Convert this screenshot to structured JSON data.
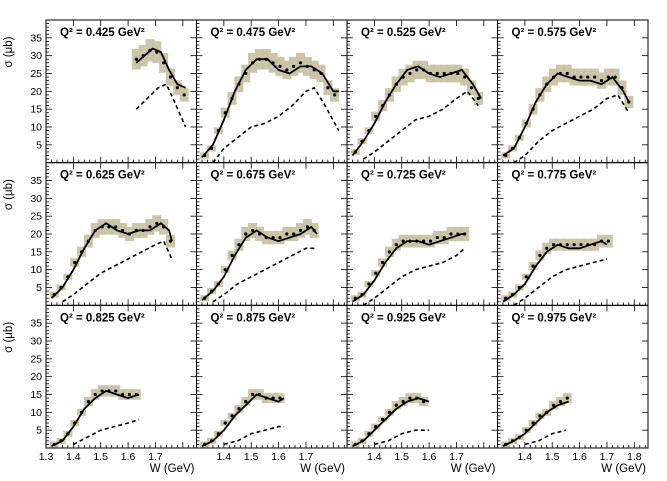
{
  "chart_data": {
    "type": "scatter",
    "title": "",
    "xlabel": "W (GeV)",
    "ylabel": "σ (μb)",
    "xlim": [
      1.3,
      1.85
    ],
    "ylim": [
      0,
      40
    ],
    "xticks": [
      1.3,
      1.4,
      1.5,
      1.6,
      1.7,
      1.8
    ],
    "xtick_labels": [
      "1.3",
      "1.4",
      "1.5",
      "1.6",
      "1.7",
      "1.8"
    ],
    "yticks": [
      5,
      10,
      15,
      20,
      25,
      30,
      35
    ],
    "ytick_labels": [
      "5",
      "10",
      "15",
      "20",
      "25",
      "30",
      "35"
    ],
    "legend": "none",
    "panels": [
      {
        "label": "Q² = 0.425 GeV²",
        "q2": "0.425",
        "points": {
          "x": [
            1.63,
            1.655,
            1.68,
            1.705,
            1.73,
            1.755,
            1.78,
            1.805
          ],
          "y": [
            29,
            30,
            31.5,
            31,
            28,
            24,
            21,
            19
          ]
        },
        "fit": {
          "x": [
            1.63,
            1.66,
            1.69,
            1.72,
            1.75,
            1.78,
            1.81
          ],
          "y": [
            28,
            30,
            32,
            31,
            26,
            22,
            21
          ]
        },
        "background": {
          "x": [
            1.63,
            1.67,
            1.71,
            1.74,
            1.77,
            1.81
          ],
          "y": [
            15,
            18,
            21,
            22,
            17,
            10
          ]
        }
      },
      {
        "label": "Q² = 0.475 GeV²",
        "q2": "0.475",
        "points": {
          "x": [
            1.33,
            1.355,
            1.38,
            1.405,
            1.43,
            1.455,
            1.48,
            1.505,
            1.53,
            1.555,
            1.58,
            1.605,
            1.63,
            1.655,
            1.68,
            1.705,
            1.73,
            1.755,
            1.78,
            1.805
          ],
          "y": [
            2,
            4,
            9,
            14,
            18,
            22,
            25,
            28,
            29,
            29,
            28,
            27,
            26,
            27,
            28,
            27,
            26,
            25,
            21,
            19
          ]
        },
        "fit": {
          "x": [
            1.32,
            1.36,
            1.4,
            1.44,
            1.48,
            1.52,
            1.56,
            1.6,
            1.64,
            1.68,
            1.72,
            1.76,
            1.8,
            1.82
          ],
          "y": [
            1.5,
            5,
            12,
            20,
            26,
            29,
            29,
            26,
            25,
            27,
            27,
            25,
            20,
            20
          ]
        },
        "background": {
          "x": [
            1.36,
            1.4,
            1.45,
            1.5,
            1.55,
            1.6,
            1.65,
            1.7,
            1.73,
            1.77,
            1.82
          ],
          "y": [
            0,
            4,
            7,
            10,
            11,
            13,
            16,
            20,
            21,
            16,
            9
          ]
        }
      },
      {
        "label": "Q² = 0.525 GeV²",
        "q2": "0.525",
        "points": {
          "x": [
            1.33,
            1.355,
            1.38,
            1.405,
            1.43,
            1.455,
            1.48,
            1.505,
            1.53,
            1.555,
            1.58,
            1.605,
            1.63,
            1.655,
            1.68,
            1.705,
            1.73,
            1.755,
            1.78
          ],
          "y": [
            3,
            6,
            9,
            13,
            16,
            19,
            22,
            24,
            25,
            26,
            26,
            25,
            25,
            25,
            25,
            25,
            24,
            21,
            18
          ]
        },
        "fit": {
          "x": [
            1.32,
            1.36,
            1.4,
            1.44,
            1.48,
            1.52,
            1.56,
            1.6,
            1.64,
            1.68,
            1.72,
            1.76,
            1.79
          ],
          "y": [
            2,
            6,
            11,
            17,
            22,
            26,
            27,
            25,
            24,
            25,
            26,
            22,
            18
          ]
        },
        "background": {
          "x": [
            1.36,
            1.4,
            1.45,
            1.5,
            1.55,
            1.6,
            1.65,
            1.7,
            1.74,
            1.78
          ],
          "y": [
            1,
            3,
            6,
            9,
            12,
            13,
            15,
            18,
            20,
            16
          ]
        }
      },
      {
        "label": "Q² = 0.575 GeV²",
        "q2": "0.575",
        "points": {
          "x": [
            1.33,
            1.355,
            1.38,
            1.405,
            1.43,
            1.455,
            1.48,
            1.505,
            1.53,
            1.555,
            1.58,
            1.605,
            1.63,
            1.655,
            1.68,
            1.705,
            1.73,
            1.755,
            1.78
          ],
          "y": [
            2,
            4,
            7,
            11,
            15,
            19,
            22,
            24,
            25,
            25,
            24,
            24,
            24,
            24,
            23,
            24,
            24,
            21,
            17
          ]
        },
        "fit": {
          "x": [
            1.32,
            1.36,
            1.4,
            1.44,
            1.48,
            1.52,
            1.56,
            1.6,
            1.64,
            1.68,
            1.72,
            1.76,
            1.78
          ],
          "y": [
            2,
            4,
            10,
            17,
            22,
            25,
            24,
            23,
            23,
            22,
            24,
            20,
            17
          ]
        },
        "background": {
          "x": [
            1.36,
            1.4,
            1.45,
            1.5,
            1.55,
            1.6,
            1.65,
            1.7,
            1.74,
            1.78
          ],
          "y": [
            0,
            2,
            6,
            9,
            11,
            13,
            15,
            18,
            19,
            14
          ]
        }
      },
      {
        "label": "Q² = 0.625 GeV²",
        "q2": "0.625",
        "points": {
          "x": [
            1.33,
            1.355,
            1.38,
            1.405,
            1.43,
            1.455,
            1.48,
            1.505,
            1.53,
            1.555,
            1.58,
            1.605,
            1.63,
            1.655,
            1.68,
            1.705,
            1.73,
            1.755
          ],
          "y": [
            3,
            5,
            8,
            12,
            15,
            18,
            21,
            22,
            22,
            22,
            21,
            20,
            21,
            21,
            22,
            23,
            22,
            18
          ]
        },
        "fit": {
          "x": [
            1.32,
            1.36,
            1.4,
            1.44,
            1.48,
            1.52,
            1.56,
            1.6,
            1.64,
            1.68,
            1.72,
            1.75,
            1.76
          ],
          "y": [
            2,
            5,
            10,
            16,
            21,
            23,
            21,
            20,
            21,
            21,
            23,
            21,
            18
          ]
        },
        "background": {
          "x": [
            1.36,
            1.4,
            1.45,
            1.5,
            1.55,
            1.6,
            1.65,
            1.7,
            1.73,
            1.76
          ],
          "y": [
            1,
            3,
            6,
            9,
            11,
            13,
            15,
            17,
            18,
            13
          ]
        }
      },
      {
        "label": "Q² = 0.675 GeV²",
        "q2": "0.675",
        "points": {
          "x": [
            1.33,
            1.355,
            1.38,
            1.405,
            1.43,
            1.455,
            1.48,
            1.505,
            1.53,
            1.555,
            1.58,
            1.605,
            1.63,
            1.655,
            1.68,
            1.705,
            1.73
          ],
          "y": [
            2,
            4,
            6,
            10,
            14,
            17,
            20,
            21,
            20,
            19,
            19,
            19,
            20,
            20,
            21,
            22,
            21
          ]
        },
        "fit": {
          "x": [
            1.32,
            1.36,
            1.4,
            1.44,
            1.48,
            1.52,
            1.56,
            1.6,
            1.64,
            1.68,
            1.72,
            1.74
          ],
          "y": [
            1.5,
            4,
            8,
            14,
            19,
            21,
            19,
            18,
            19,
            20,
            22,
            20
          ]
        },
        "background": {
          "x": [
            1.36,
            1.4,
            1.45,
            1.5,
            1.55,
            1.6,
            1.65,
            1.7,
            1.74
          ],
          "y": [
            1,
            3,
            6,
            8,
            10,
            12,
            14,
            16,
            16
          ]
        }
      },
      {
        "label": "Q² = 0.725 GeV²",
        "q2": "0.725",
        "points": {
          "x": [
            1.33,
            1.355,
            1.38,
            1.405,
            1.43,
            1.455,
            1.48,
            1.505,
            1.53,
            1.555,
            1.58,
            1.605,
            1.63,
            1.655,
            1.68,
            1.705,
            1.73
          ],
          "y": [
            2,
            3,
            6,
            9,
            12,
            15,
            17,
            18,
            18,
            18,
            18,
            18,
            19,
            19,
            20,
            20,
            20
          ]
        },
        "fit": {
          "x": [
            1.32,
            1.36,
            1.4,
            1.44,
            1.48,
            1.52,
            1.56,
            1.6,
            1.64,
            1.68,
            1.72,
            1.73
          ],
          "y": [
            1,
            3,
            7,
            12,
            16,
            18,
            18,
            17,
            18,
            19,
            20,
            20
          ]
        },
        "background": {
          "x": [
            1.36,
            1.4,
            1.45,
            1.5,
            1.55,
            1.6,
            1.65,
            1.7,
            1.73
          ],
          "y": [
            0,
            2,
            5,
            8,
            10,
            11,
            12,
            14,
            16
          ]
        }
      },
      {
        "label": "Q² = 0.775 GeV²",
        "q2": "0.775",
        "points": {
          "x": [
            1.33,
            1.355,
            1.38,
            1.405,
            1.43,
            1.455,
            1.48,
            1.505,
            1.53,
            1.555,
            1.58,
            1.605,
            1.63,
            1.655,
            1.68,
            1.705
          ],
          "y": [
            2,
            3,
            5,
            8,
            11,
            14,
            16,
            17,
            17,
            17,
            17,
            17,
            17,
            17,
            18,
            18
          ]
        },
        "fit": {
          "x": [
            1.32,
            1.36,
            1.4,
            1.44,
            1.48,
            1.52,
            1.56,
            1.6,
            1.64,
            1.68,
            1.7
          ],
          "y": [
            1,
            3,
            6,
            11,
            15,
            17,
            16,
            16,
            17,
            18,
            17
          ]
        },
        "background": {
          "x": [
            1.36,
            1.4,
            1.45,
            1.5,
            1.55,
            1.6,
            1.65,
            1.7
          ],
          "y": [
            0,
            2,
            5,
            8,
            10,
            11,
            12,
            13
          ]
        }
      },
      {
        "label": "Q² = 0.825 GeV²",
        "q2": "0.825",
        "points": {
          "x": [
            1.33,
            1.355,
            1.38,
            1.405,
            1.43,
            1.455,
            1.48,
            1.505,
            1.53,
            1.555,
            1.58,
            1.605,
            1.63
          ],
          "y": [
            1,
            2,
            4,
            7,
            10,
            13,
            15,
            16,
            16,
            16,
            15,
            15,
            15
          ]
        },
        "fit": {
          "x": [
            1.32,
            1.36,
            1.4,
            1.44,
            1.48,
            1.52,
            1.56,
            1.6,
            1.64
          ],
          "y": [
            0.5,
            2,
            6,
            11,
            14,
            16,
            15,
            14,
            15
          ]
        },
        "background": {
          "x": [
            1.4,
            1.45,
            1.5,
            1.55,
            1.6,
            1.64
          ],
          "y": [
            1,
            3,
            5,
            6,
            7,
            8
          ]
        }
      },
      {
        "label": "Q² = 0.875 GeV²",
        "q2": "0.875",
        "points": {
          "x": [
            1.33,
            1.355,
            1.38,
            1.405,
            1.43,
            1.455,
            1.48,
            1.505,
            1.53,
            1.555,
            1.58,
            1.605
          ],
          "y": [
            1,
            2,
            4,
            7,
            9,
            11,
            13,
            15,
            15,
            14,
            14,
            14
          ]
        },
        "fit": {
          "x": [
            1.32,
            1.36,
            1.4,
            1.44,
            1.48,
            1.52,
            1.56,
            1.6,
            1.62
          ],
          "y": [
            0.5,
            2,
            5,
            9,
            12,
            15,
            14,
            13,
            14
          ]
        },
        "background": {
          "x": [
            1.4,
            1.45,
            1.5,
            1.55,
            1.6,
            1.62
          ],
          "y": [
            1,
            2,
            4,
            5,
            6,
            6
          ]
        }
      },
      {
        "label": "Q² = 0.925 GeV²",
        "q2": "0.925",
        "points": {
          "x": [
            1.33,
            1.355,
            1.38,
            1.405,
            1.43,
            1.455,
            1.48,
            1.505,
            1.53,
            1.555,
            1.58
          ],
          "y": [
            1,
            2,
            4,
            6,
            8,
            10,
            12,
            13,
            14,
            14,
            13
          ]
        },
        "fit": {
          "x": [
            1.32,
            1.36,
            1.4,
            1.44,
            1.48,
            1.52,
            1.56,
            1.6
          ],
          "y": [
            0.5,
            2,
            5,
            8,
            11,
            13,
            14,
            13
          ]
        },
        "background": {
          "x": [
            1.4,
            1.45,
            1.5,
            1.55,
            1.6
          ],
          "y": [
            1,
            2,
            4,
            5,
            5
          ]
        }
      },
      {
        "label": "Q² = 0.975 GeV²",
        "q2": "0.975",
        "points": {
          "x": [
            1.33,
            1.355,
            1.38,
            1.405,
            1.43,
            1.455,
            1.48,
            1.505,
            1.53,
            1.555
          ],
          "y": [
            1,
            2,
            3,
            5,
            7,
            9,
            10,
            12,
            13,
            14
          ]
        },
        "fit": {
          "x": [
            1.32,
            1.36,
            1.4,
            1.44,
            1.48,
            1.52,
            1.56
          ],
          "y": [
            0.5,
            2,
            4,
            7,
            10,
            12,
            13
          ]
        },
        "background": {
          "x": [
            1.4,
            1.45,
            1.5,
            1.55
          ],
          "y": [
            1,
            2,
            4,
            5
          ]
        }
      }
    ]
  }
}
